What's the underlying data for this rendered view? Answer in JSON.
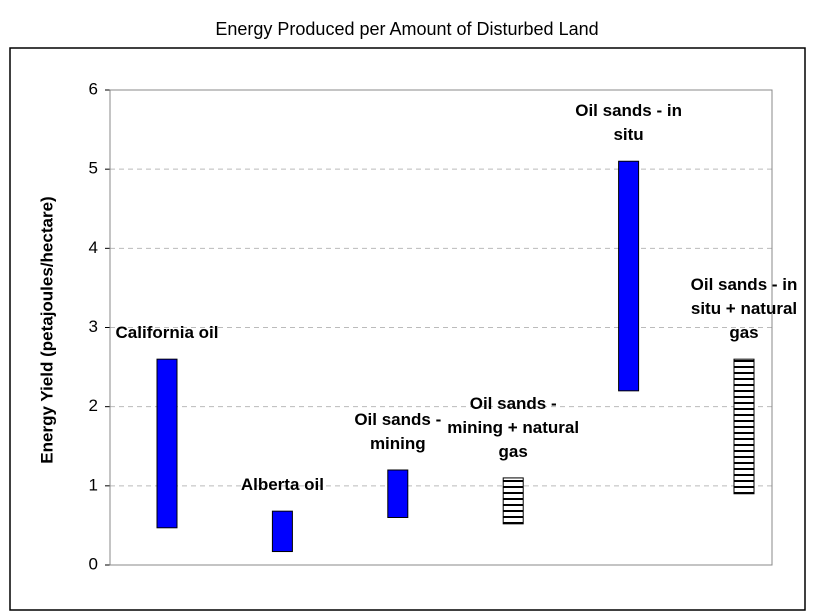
{
  "chart_data": {
    "type": "floating-bar",
    "title": "Energy Produced per Amount of Disturbed Land",
    "y_label": "Energy Yield (petajoules/hectare)",
    "categories": [
      "California oil",
      "Alberta oil",
      "Oil sands - mining",
      "Oil sands - mining + natural gas",
      "Oil sands - in situ",
      "Oil sands - in situ + natural gas"
    ],
    "low": [
      0.47,
      0.17,
      0.6,
      0.52,
      2.2,
      0.9
    ],
    "high": [
      2.6,
      0.68,
      1.2,
      1.1,
      5.1,
      2.6
    ],
    "styles": [
      "solid",
      "solid",
      "solid",
      "hatched",
      "solid",
      "hatched"
    ],
    "color": "#0000ff",
    "ylim": [
      0,
      6
    ],
    "yticks": [
      0,
      1,
      2,
      3,
      4,
      5,
      6
    ],
    "grid": true
  }
}
